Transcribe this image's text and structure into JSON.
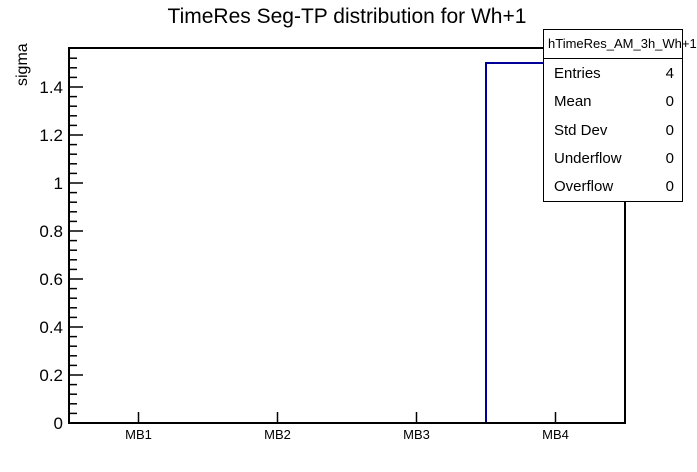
{
  "title": "TimeRes Seg-TP distribution for Wh+1",
  "chart_data": {
    "type": "bar",
    "title": "TimeRes Seg-TP distribution for Wh+1",
    "categories": [
      "MB1",
      "MB2",
      "MB3",
      "MB4"
    ],
    "values": [
      0,
      0,
      0,
      1.5
    ],
    "xlabel": "",
    "ylabel": "sigma",
    "ylim": [
      0,
      1.5625
    ],
    "y_major_step": 0.2,
    "y_minor_step": 0.04,
    "y_tick_labels": [
      "0",
      "0.2",
      "0.4",
      "0.6",
      "0.8",
      "1",
      "1.2",
      "1.4"
    ],
    "grid": false,
    "legend": null,
    "bar_fill": "none",
    "bar_outline_color": "#000099",
    "frame_color": "#000000",
    "text_color": "#000000",
    "background_color": "#ffffff"
  },
  "stats_box": {
    "header": "hTimeRes_AM_3h_Wh+1",
    "rows": [
      {
        "label": "Entries",
        "value": "4"
      },
      {
        "label": "Mean",
        "value": "0"
      },
      {
        "label": "Std Dev",
        "value": "0"
      },
      {
        "label": "Underflow",
        "value": "0"
      },
      {
        "label": "Overflow",
        "value": "0"
      }
    ]
  }
}
